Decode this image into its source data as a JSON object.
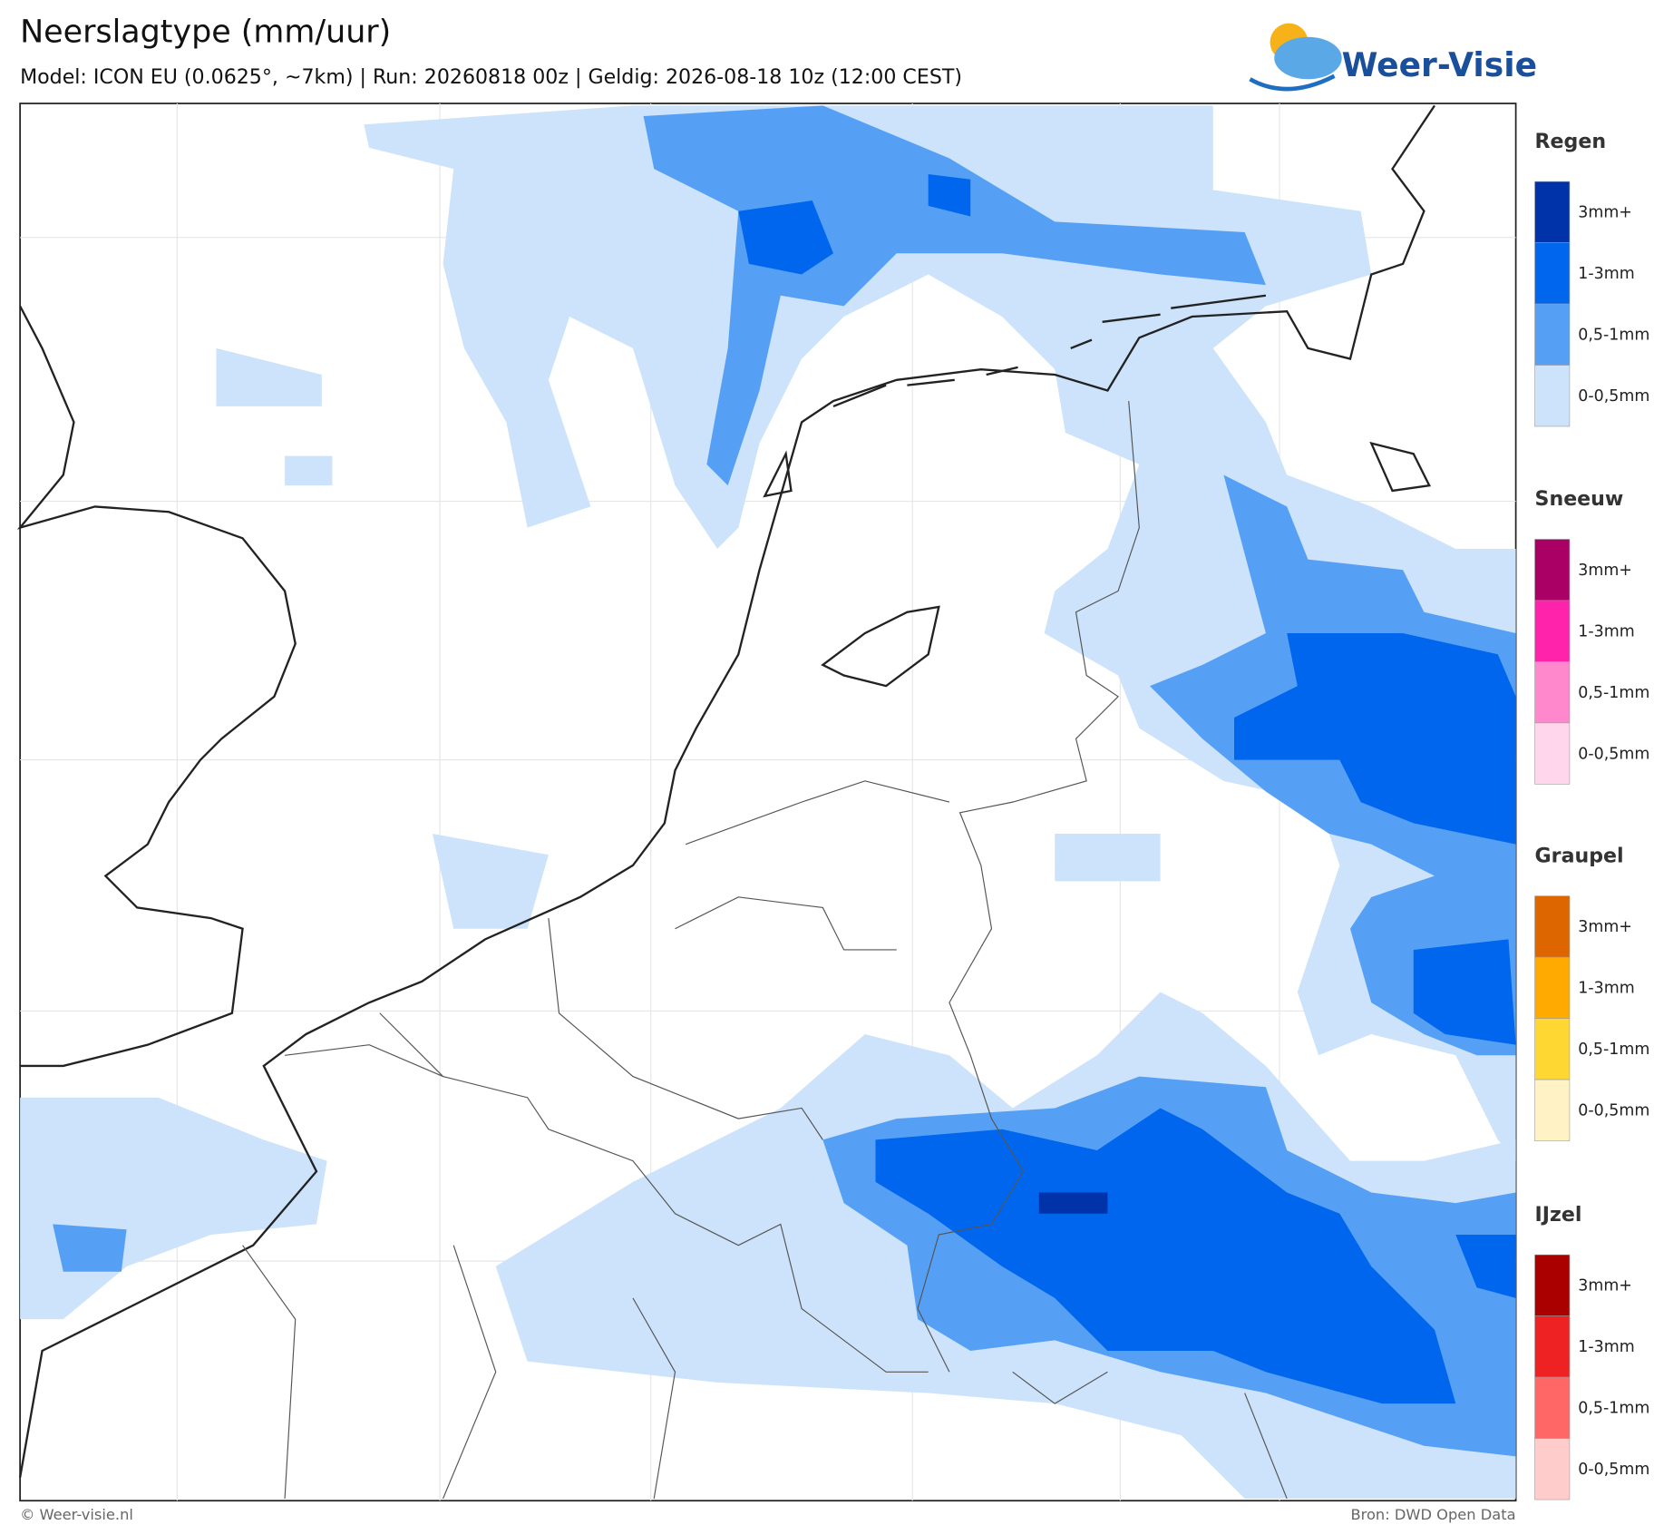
{
  "header": {
    "title": "Neerslagtype (mm/uur)",
    "subtitle": "Model: ICON EU (0.0625°, ~7km)  |  Run: 20260818 00z  |  Geldig: 2026-08-18 10z (12:00 CEST)"
  },
  "logo": {
    "text": "Weer-Visie"
  },
  "legend": {
    "groups": [
      {
        "title": "Regen",
        "items": [
          {
            "label": "3mm+",
            "color": "#0033aa"
          },
          {
            "label": "1-3mm",
            "color": "#0066ee"
          },
          {
            "label": "0,5-1mm",
            "color": "#55a0f5"
          },
          {
            "label": "0-0,5mm",
            "color": "#cce3fb"
          }
        ]
      },
      {
        "title": "Sneeuw",
        "items": [
          {
            "label": "3mm+",
            "color": "#aa0066"
          },
          {
            "label": "1-3mm",
            "color": "#ff22aa"
          },
          {
            "label": "0,5-1mm",
            "color": "#ff88cc"
          },
          {
            "label": "0-0,5mm",
            "color": "#ffd6ec"
          }
        ]
      },
      {
        "title": "Graupel",
        "items": [
          {
            "label": "3mm+",
            "color": "#dd6600"
          },
          {
            "label": "1-3mm",
            "color": "#ffaa00"
          },
          {
            "label": "0,5-1mm",
            "color": "#ffd733"
          },
          {
            "label": "0-0,5mm",
            "color": "#fff2c4"
          }
        ]
      },
      {
        "title": "IJzel",
        "items": [
          {
            "label": "3mm+",
            "color": "#aa0000"
          },
          {
            "label": "1-3mm",
            "color": "#ee2222"
          },
          {
            "label": "0,5-1mm",
            "color": "#ff6666"
          },
          {
            "label": "0-0,5mm",
            "color": "#ffcccc"
          }
        ]
      }
    ]
  },
  "footer": {
    "left": "© Weer-visie.nl",
    "right": "Bron: DWD Open Data"
  }
}
